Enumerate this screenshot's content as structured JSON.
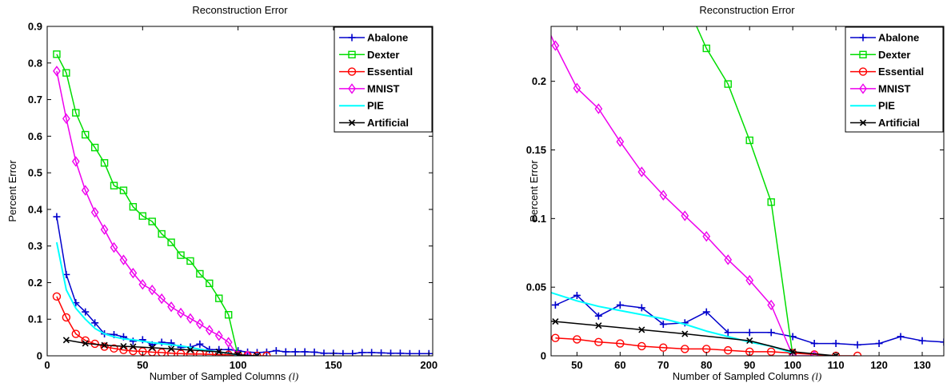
{
  "chart_data": [
    {
      "type": "line",
      "title": "Reconstruction Error",
      "xlabel": "Number of Sampled Columns",
      "xlabel_symbol": "(l)",
      "ylabel": "Percent Error",
      "xlim": [
        0,
        202
      ],
      "ylim": [
        0,
        0.9
      ],
      "xticks": [
        0,
        50,
        100,
        150,
        200
      ],
      "yticks": [
        0,
        0.1,
        0.2,
        0.3,
        0.4,
        0.5,
        0.6,
        0.7,
        0.8,
        0.9
      ],
      "ytick_labels": [
        "0",
        "0.1",
        "0.2",
        "0.3",
        "0.4",
        "0.5",
        "0.6",
        "0.7",
        "0.8",
        "0.9"
      ],
      "grid": false,
      "legend_position": "top-right",
      "series": [
        {
          "name": "Abalone",
          "color": "#0000cc",
          "marker": "plus",
          "x": [
            5,
            10,
            15,
            20,
            25,
            30,
            35,
            40,
            45,
            50,
            55,
            60,
            65,
            70,
            75,
            80,
            85,
            90,
            95,
            100,
            105,
            110,
            115,
            120,
            125,
            130,
            135,
            140,
            145,
            150,
            155,
            160,
            165,
            170,
            175,
            180,
            185,
            190,
            195,
            200
          ],
          "y": [
            0.38,
            0.222,
            0.145,
            0.12,
            0.09,
            0.06,
            0.058,
            0.052,
            0.04,
            0.044,
            0.03,
            0.037,
            0.035,
            0.023,
            0.024,
            0.032,
            0.017,
            0.017,
            0.017,
            0.014,
            0.01,
            0.009,
            0.01,
            0.014,
            0.011,
            0.011,
            0.011,
            0.01,
            0.007,
            0.007,
            0.006,
            0.006,
            0.009,
            0.009,
            0.008,
            0.007,
            0.007,
            0.006,
            0.006,
            0.006
          ]
        },
        {
          "name": "Dexter",
          "color": "#00dd00",
          "marker": "square",
          "x": [
            5,
            10,
            15,
            20,
            25,
            30,
            35,
            40,
            45,
            50,
            55,
            60,
            65,
            70,
            75,
            80,
            85,
            90,
            95,
            100
          ],
          "y": [
            0.824,
            0.773,
            0.664,
            0.604,
            0.569,
            0.527,
            0.465,
            0.452,
            0.407,
            0.382,
            0.367,
            0.333,
            0.31,
            0.275,
            0.259,
            0.224,
            0.198,
            0.157,
            0.112,
            0.0
          ]
        },
        {
          "name": "Essential",
          "color": "#ff0000",
          "marker": "circle",
          "x": [
            5,
            10,
            15,
            20,
            25,
            30,
            35,
            40,
            45,
            50,
            55,
            60,
            65,
            70,
            75,
            80,
            85,
            90,
            95,
            100,
            105,
            110,
            115
          ],
          "y": [
            0.162,
            0.105,
            0.06,
            0.042,
            0.033,
            0.025,
            0.02,
            0.016,
            0.013,
            0.012,
            0.01,
            0.009,
            0.007,
            0.006,
            0.005,
            0.005,
            0.004,
            0.003,
            0.003,
            0.002,
            0.001,
            0.0,
            0.0
          ]
        },
        {
          "name": "MNIST",
          "color": "#ee00ee",
          "marker": "diamond",
          "x": [
            5,
            10,
            15,
            20,
            25,
            30,
            35,
            40,
            45,
            50,
            55,
            60,
            65,
            70,
            75,
            80,
            85,
            90,
            95,
            100,
            105
          ],
          "y": [
            0.778,
            0.648,
            0.531,
            0.452,
            0.392,
            0.345,
            0.296,
            0.262,
            0.226,
            0.195,
            0.18,
            0.156,
            0.134,
            0.117,
            0.102,
            0.087,
            0.07,
            0.055,
            0.037,
            0.0,
            0.0
          ]
        },
        {
          "name": "PIE",
          "color": "#00ffff",
          "marker": "none",
          "x": [
            5,
            10,
            15,
            20,
            25,
            30,
            35,
            40,
            45,
            50,
            55,
            60,
            65,
            70,
            75,
            80,
            85,
            90,
            95,
            100
          ],
          "y": [
            0.31,
            0.18,
            0.13,
            0.1,
            0.075,
            0.06,
            0.052,
            0.046,
            0.044,
            0.04,
            0.036,
            0.033,
            0.03,
            0.027,
            0.023,
            0.018,
            0.014,
            0.01,
            0.007,
            0.002
          ]
        },
        {
          "name": "Artificial",
          "color": "#000000",
          "marker": "x",
          "x": [
            10,
            20,
            30,
            40,
            45,
            55,
            65,
            75,
            90,
            100,
            110
          ],
          "y": [
            0.043,
            0.034,
            0.029,
            0.026,
            0.025,
            0.022,
            0.019,
            0.016,
            0.011,
            0.003,
            0.0
          ]
        }
      ]
    },
    {
      "type": "line",
      "title": "Reconstruction Error",
      "xlabel": "Number of Sampled Columns",
      "xlabel_symbol": "(l)",
      "ylabel": "Percent Error",
      "xlim": [
        44,
        135
      ],
      "ylim": [
        0,
        0.24
      ],
      "xticks": [
        50,
        60,
        70,
        80,
        90,
        100,
        110,
        120,
        130
      ],
      "yticks": [
        0,
        0.05,
        0.1,
        0.15,
        0.2
      ],
      "ytick_labels": [
        "0",
        "0.05",
        "0.1",
        "0.15",
        "0.2"
      ],
      "grid": false,
      "legend_position": "top-right",
      "series": [
        {
          "name": "Abalone",
          "color": "#0000cc",
          "marker": "plus",
          "x": [
            45,
            50,
            55,
            60,
            65,
            70,
            75,
            80,
            85,
            90,
            95,
            100,
            105,
            110,
            115,
            120,
            125,
            130,
            135
          ],
          "y": [
            0.037,
            0.044,
            0.029,
            0.037,
            0.035,
            0.023,
            0.024,
            0.032,
            0.017,
            0.017,
            0.017,
            0.014,
            0.009,
            0.009,
            0.008,
            0.009,
            0.014,
            0.011,
            0.01
          ]
        },
        {
          "name": "Dexter",
          "color": "#00dd00",
          "marker": "square",
          "x": [
            75,
            80,
            85,
            90,
            95,
            100
          ],
          "y": [
            0.259,
            0.224,
            0.198,
            0.157,
            0.112,
            0.0
          ]
        },
        {
          "name": "Essential",
          "color": "#ff0000",
          "marker": "circle",
          "x": [
            45,
            50,
            55,
            60,
            65,
            70,
            75,
            80,
            85,
            90,
            95,
            100,
            105,
            110,
            115
          ],
          "y": [
            0.013,
            0.012,
            0.01,
            0.009,
            0.007,
            0.006,
            0.005,
            0.005,
            0.004,
            0.003,
            0.003,
            0.002,
            0.001,
            0.0,
            0.0
          ]
        },
        {
          "name": "MNIST",
          "color": "#ee00ee",
          "marker": "diamond",
          "x": [
            40,
            45,
            50,
            55,
            60,
            65,
            70,
            75,
            80,
            85,
            90,
            95,
            100,
            105
          ],
          "y": [
            0.262,
            0.226,
            0.195,
            0.18,
            0.156,
            0.134,
            0.117,
            0.102,
            0.087,
            0.07,
            0.055,
            0.037,
            0.0,
            0.0
          ]
        },
        {
          "name": "PIE",
          "color": "#00ffff",
          "marker": "none",
          "x": [
            44,
            50,
            55,
            60,
            65,
            70,
            75,
            80,
            85,
            90,
            95,
            100
          ],
          "y": [
            0.046,
            0.04,
            0.036,
            0.033,
            0.03,
            0.027,
            0.023,
            0.018,
            0.014,
            0.01,
            0.007,
            0.002
          ]
        },
        {
          "name": "Artificial",
          "color": "#000000",
          "marker": "x",
          "x": [
            40,
            45,
            55,
            65,
            75,
            90,
            100,
            110
          ],
          "y": [
            0.026,
            0.025,
            0.022,
            0.019,
            0.016,
            0.011,
            0.003,
            0.0
          ]
        }
      ]
    }
  ]
}
